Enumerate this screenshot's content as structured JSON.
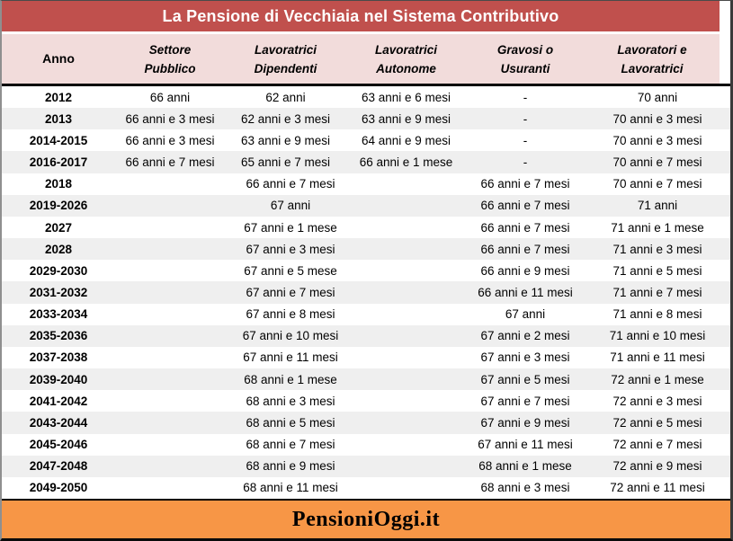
{
  "title": "La Pensione di Vecchiaia nel Sistema Contributivo",
  "colors": {
    "title_bg": "#C0504D",
    "header_bg": "#F2DCDB",
    "stripe": "#EFEFEF",
    "footer_bg": "#F79646",
    "title_text": "#FFFFFF",
    "body_text": "#000000"
  },
  "header": {
    "columns": [
      {
        "line1": "Anno",
        "line2": ""
      },
      {
        "line1": "Settore",
        "line2": "Pubblico"
      },
      {
        "line1": "Lavoratrici",
        "line2": "Dipendenti"
      },
      {
        "line1": "Lavoratrici",
        "line2": "Autonome"
      },
      {
        "line1": "Gravosi o",
        "line2": "Usuranti"
      },
      {
        "line1": "Lavoratori e",
        "line2": "Lavoratrici"
      }
    ]
  },
  "chart_data": {
    "type": "table",
    "title": "La Pensione di Vecchiaia nel Sistema Contributivo",
    "columns": [
      "Anno",
      "Settore Pubblico",
      "Lavoratrici Dipendenti",
      "Lavoratrici Autonome",
      "Gravosi o Usuranti",
      "Lavoratori e Lavoratrici"
    ],
    "rows": [
      {
        "anno": "2012",
        "settore": "66 anni",
        "dipendenti": "62 anni",
        "autonome": "63 anni e 6 mesi",
        "gravosi": "-",
        "lavoratori": "70 anni"
      },
      {
        "anno": "2013",
        "settore": "66 anni e 3 mesi",
        "dipendenti": "62 anni e 3 mesi",
        "autonome": "63 anni e 9 mesi",
        "gravosi": "-",
        "lavoratori": "70 anni e 3 mesi"
      },
      {
        "anno": "2014-2015",
        "settore": "66 anni e 3 mesi",
        "dipendenti": "63 anni e 9 mesi",
        "autonome": "64 anni e 9 mesi",
        "gravosi": "-",
        "lavoratori": "70 anni e 3 mesi"
      },
      {
        "anno": "2016-2017",
        "settore": "66 anni e 7 mesi",
        "dipendenti": "65 anni e 7 mesi",
        "autonome": "66 anni e 1 mese",
        "gravosi": "-",
        "lavoratori": "70 anni e 7 mesi"
      },
      {
        "anno": "2018",
        "merged": "66 anni e 7 mesi",
        "gravosi": "66 anni e 7 mesi",
        "lavoratori": "70 anni e 7 mesi"
      },
      {
        "anno": "2019-2026",
        "merged": "67 anni",
        "gravosi": "66 anni e 7 mesi",
        "lavoratori": "71 anni"
      },
      {
        "anno": "2027",
        "merged": "67 anni e 1 mese",
        "gravosi": "66 anni e 7 mesi",
        "lavoratori": "71 anni e 1 mese"
      },
      {
        "anno": "2028",
        "merged": "67 anni e 3 mesi",
        "gravosi": "66 anni e 7 mesi",
        "lavoratori": "71 anni e 3 mesi"
      },
      {
        "anno": "2029-2030",
        "merged": "67 anni e 5 mese",
        "gravosi": "66 anni e 9 mesi",
        "lavoratori": "71 anni e 5 mesi"
      },
      {
        "anno": "2031-2032",
        "merged": "67 anni e 7 mesi",
        "gravosi": "66 anni e 11 mesi",
        "lavoratori": "71 anni e 7 mesi"
      },
      {
        "anno": "2033-2034",
        "merged": "67 anni e 8 mesi",
        "gravosi": "67 anni",
        "lavoratori": "71 anni e 8 mesi"
      },
      {
        "anno": "2035-2036",
        "merged": "67 anni e 10 mesi",
        "gravosi": "67 anni e 2 mesi",
        "lavoratori": "71 anni e 10 mesi"
      },
      {
        "anno": "2037-2038",
        "merged": "67 anni e 11 mesi",
        "gravosi": "67 anni e 3 mesi",
        "lavoratori": "71 anni e 11 mesi"
      },
      {
        "anno": "2039-2040",
        "merged": "68 anni e 1 mese",
        "gravosi": "67 anni e 5 mesi",
        "lavoratori": "72 anni e 1 mese"
      },
      {
        "anno": "2041-2042",
        "merged": "68 anni e 3 mesi",
        "gravosi": "67 anni e 7 mesi",
        "lavoratori": "72 anni e 3 mesi"
      },
      {
        "anno": "2043-2044",
        "merged": "68 anni e 5 mesi",
        "gravosi": "67 anni e 9 mesi",
        "lavoratori": "72 anni e 5 mesi"
      },
      {
        "anno": "2045-2046",
        "merged": "68 anni e 7 mesi",
        "gravosi": "67 anni e 11 mesi",
        "lavoratori": "72 anni e 7 mesi"
      },
      {
        "anno": "2047-2048",
        "merged": "68 anni e 9 mesi",
        "gravosi": "68 anni e 1 mese",
        "lavoratori": "72 anni e 9 mesi"
      },
      {
        "anno": "2049-2050",
        "merged": "68 anni e 11 mesi",
        "gravosi": "68 anni e 3 mesi",
        "lavoratori": "72 anni e 11 mesi"
      }
    ]
  },
  "footer": {
    "brand": "PensioniOggi.it"
  }
}
